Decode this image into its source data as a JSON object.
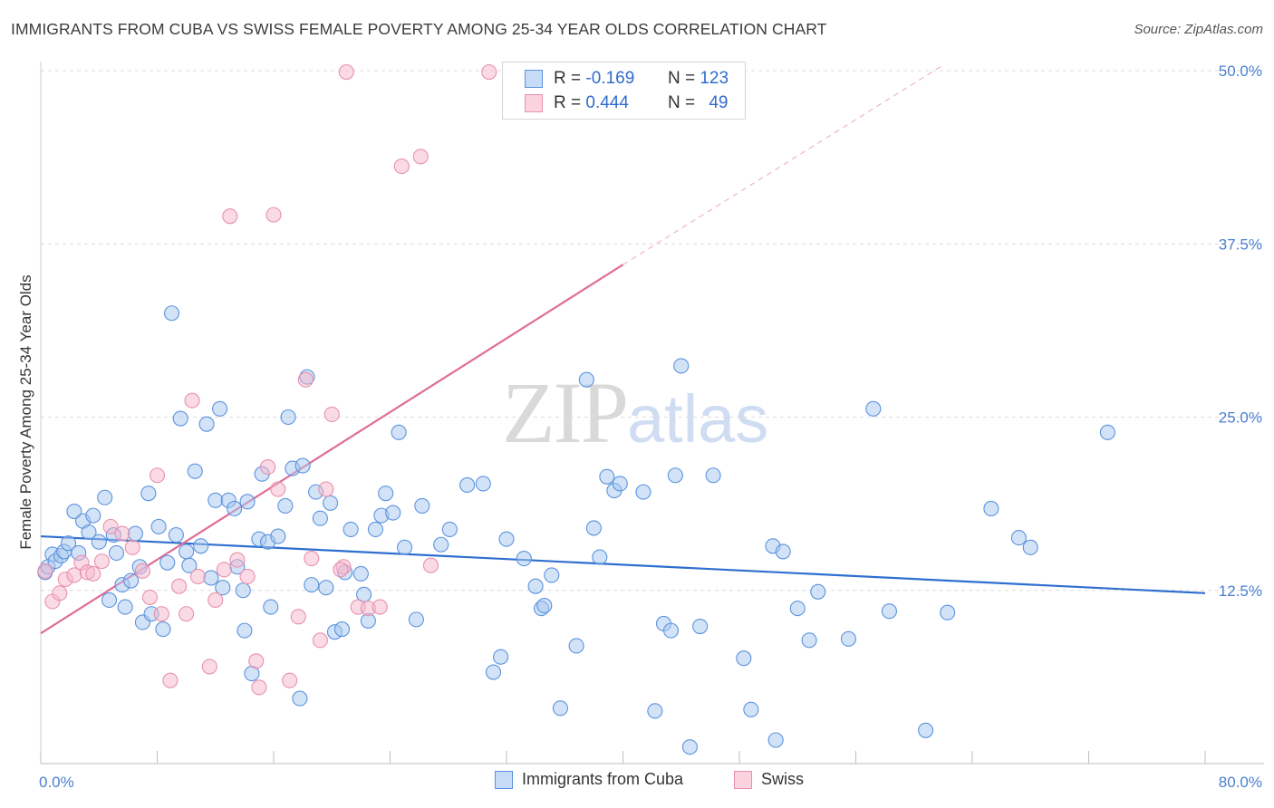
{
  "title": "IMMIGRANTS FROM CUBA VS SWISS FEMALE POVERTY AMONG 25-34 YEAR OLDS CORRELATION CHART",
  "source": "Source: ZipAtlas.com",
  "watermark": {
    "zip": "ZIP",
    "atlas": "atlas"
  },
  "legend": {
    "rows": [
      {
        "r_label": "R =",
        "r_value": "-0.169",
        "n_label": "N =",
        "n_value": "123",
        "color": "#a8c8f0"
      },
      {
        "r_label": "R =",
        "r_value": "0.444",
        "n_label": "N =",
        "n_value": "49",
        "color": "#f6b8cb"
      }
    ]
  },
  "bottom_legend": [
    {
      "label": "Immigrants from Cuba",
      "color": "#a8c8f0"
    },
    {
      "label": "Swiss",
      "color": "#f6b8cb"
    }
  ],
  "chart_data": {
    "type": "scatter",
    "title": "IMMIGRANTS FROM CUBA VS SWISS FEMALE POVERTY AMONG 25-34 YEAR OLDS CORRELATION CHART",
    "xlabel": "",
    "ylabel": "Female Poverty Among 25-34 Year Olds",
    "xlim": [
      0,
      80
    ],
    "ylim": [
      0,
      50
    ],
    "x_tick_labels": [
      "0.0%",
      "80.0%"
    ],
    "y_ticks": [
      12.5,
      25,
      37.5,
      50
    ],
    "y_tick_labels": [
      "12.5%",
      "25.0%",
      "37.5%",
      "50.0%"
    ],
    "grid": true,
    "legend_position": "top-center",
    "series": [
      {
        "name": "Immigrants from Cuba",
        "color": "#5b93de",
        "fill": "#a8c8f0",
        "trend": {
          "x": [
            0,
            80
          ],
          "y": [
            16.4,
            12.3
          ],
          "style": "solid",
          "color": "#2f6fd0"
        },
        "points": [
          [
            0.3,
            13.8
          ],
          [
            0.5,
            14.2
          ],
          [
            0.8,
            15.1
          ],
          [
            1.0,
            14.6
          ],
          [
            1.4,
            15.0
          ],
          [
            1.6,
            15.3
          ],
          [
            1.9,
            15.9
          ],
          [
            2.3,
            18.2
          ],
          [
            2.6,
            15.2
          ],
          [
            2.9,
            17.5
          ],
          [
            3.3,
            16.7
          ],
          [
            3.6,
            17.9
          ],
          [
            4.0,
            16.0
          ],
          [
            4.4,
            19.2
          ],
          [
            4.7,
            11.8
          ],
          [
            5.0,
            16.5
          ],
          [
            5.2,
            15.2
          ],
          [
            5.6,
            12.9
          ],
          [
            5.8,
            11.3
          ],
          [
            6.2,
            13.2
          ],
          [
            6.5,
            16.6
          ],
          [
            6.8,
            14.2
          ],
          [
            7.0,
            10.2
          ],
          [
            7.4,
            19.5
          ],
          [
            7.6,
            10.8
          ],
          [
            8.1,
            17.1
          ],
          [
            8.4,
            9.7
          ],
          [
            8.7,
            14.5
          ],
          [
            9.0,
            32.5
          ],
          [
            9.3,
            16.5
          ],
          [
            9.6,
            24.9
          ],
          [
            10.0,
            15.3
          ],
          [
            10.2,
            14.3
          ],
          [
            10.6,
            21.1
          ],
          [
            11.0,
            15.7
          ],
          [
            11.4,
            24.5
          ],
          [
            11.7,
            13.4
          ],
          [
            12.0,
            19.0
          ],
          [
            12.3,
            25.6
          ],
          [
            12.5,
            12.7
          ],
          [
            12.9,
            19.0
          ],
          [
            13.3,
            18.4
          ],
          [
            13.5,
            14.2
          ],
          [
            13.9,
            12.5
          ],
          [
            14.0,
            9.6
          ],
          [
            14.2,
            18.9
          ],
          [
            14.5,
            6.5
          ],
          [
            15.0,
            16.2
          ],
          [
            15.2,
            20.9
          ],
          [
            15.6,
            16.0
          ],
          [
            15.8,
            11.3
          ],
          [
            16.3,
            16.4
          ],
          [
            16.8,
            18.6
          ],
          [
            17.0,
            25.0
          ],
          [
            17.3,
            21.3
          ],
          [
            17.8,
            4.7
          ],
          [
            18.0,
            21.5
          ],
          [
            18.3,
            27.9
          ],
          [
            18.6,
            12.9
          ],
          [
            18.9,
            19.6
          ],
          [
            19.2,
            17.7
          ],
          [
            19.6,
            12.7
          ],
          [
            19.9,
            18.8
          ],
          [
            20.2,
            9.5
          ],
          [
            20.7,
            9.7
          ],
          [
            20.9,
            13.8
          ],
          [
            21.3,
            16.9
          ],
          [
            22.0,
            13.7
          ],
          [
            22.2,
            12.2
          ],
          [
            22.5,
            10.3
          ],
          [
            23.0,
            16.9
          ],
          [
            23.4,
            17.9
          ],
          [
            23.7,
            19.5
          ],
          [
            24.2,
            18.1
          ],
          [
            24.6,
            23.9
          ],
          [
            25.0,
            15.6
          ],
          [
            25.8,
            10.4
          ],
          [
            26.2,
            18.6
          ],
          [
            27.5,
            15.8
          ],
          [
            28.1,
            16.9
          ],
          [
            29.3,
            20.1
          ],
          [
            30.4,
            20.2
          ],
          [
            31.1,
            6.6
          ],
          [
            31.6,
            7.7
          ],
          [
            32.0,
            16.2
          ],
          [
            33.2,
            14.8
          ],
          [
            34.0,
            12.8
          ],
          [
            34.4,
            11.2
          ],
          [
            34.6,
            11.4
          ],
          [
            35.1,
            13.6
          ],
          [
            35.7,
            4.0
          ],
          [
            36.8,
            8.5
          ],
          [
            37.5,
            27.7
          ],
          [
            38.0,
            17.0
          ],
          [
            38.4,
            14.9
          ],
          [
            38.9,
            20.7
          ],
          [
            39.4,
            19.7
          ],
          [
            39.8,
            20.2
          ],
          [
            41.4,
            19.6
          ],
          [
            42.2,
            3.8
          ],
          [
            42.8,
            10.1
          ],
          [
            43.3,
            9.6
          ],
          [
            43.6,
            20.8
          ],
          [
            44.0,
            28.7
          ],
          [
            44.6,
            1.2
          ],
          [
            45.3,
            9.9
          ],
          [
            46.2,
            20.8
          ],
          [
            48.3,
            7.6
          ],
          [
            48.8,
            3.9
          ],
          [
            50.3,
            15.7
          ],
          [
            50.5,
            1.7
          ],
          [
            51.0,
            15.3
          ],
          [
            52.0,
            11.2
          ],
          [
            52.8,
            8.9
          ],
          [
            53.4,
            12.4
          ],
          [
            55.5,
            9.0
          ],
          [
            57.2,
            25.6
          ],
          [
            58.3,
            11.0
          ],
          [
            60.8,
            2.4
          ],
          [
            62.3,
            10.9
          ],
          [
            65.3,
            18.4
          ],
          [
            67.2,
            16.3
          ],
          [
            68.0,
            15.6
          ],
          [
            73.3,
            23.9
          ]
        ]
      },
      {
        "name": "Swiss",
        "color": "#e891ad",
        "fill": "#f6b8cb",
        "trend": {
          "x": [
            0,
            40
          ],
          "y": [
            9.4,
            36
          ],
          "style": "solid",
          "dashed_extension_to": [
            62,
            50.4
          ],
          "color": "#e06d97"
        },
        "points": [
          [
            0.3,
            13.9
          ],
          [
            0.8,
            11.7
          ],
          [
            1.3,
            12.3
          ],
          [
            1.7,
            13.3
          ],
          [
            2.3,
            13.6
          ],
          [
            2.8,
            14.5
          ],
          [
            3.2,
            13.8
          ],
          [
            3.6,
            13.7
          ],
          [
            4.2,
            14.6
          ],
          [
            4.8,
            17.1
          ],
          [
            5.6,
            16.6
          ],
          [
            6.3,
            15.6
          ],
          [
            7.0,
            13.9
          ],
          [
            7.5,
            12.0
          ],
          [
            8.0,
            20.8
          ],
          [
            8.3,
            10.8
          ],
          [
            8.9,
            6.0
          ],
          [
            9.5,
            12.8
          ],
          [
            10.0,
            10.8
          ],
          [
            10.4,
            26.2
          ],
          [
            10.8,
            13.5
          ],
          [
            11.6,
            7.0
          ],
          [
            12.0,
            11.8
          ],
          [
            12.6,
            14.0
          ],
          [
            13.0,
            39.5
          ],
          [
            13.5,
            14.7
          ],
          [
            14.2,
            13.5
          ],
          [
            14.8,
            7.4
          ],
          [
            15.0,
            5.5
          ],
          [
            15.6,
            21.4
          ],
          [
            16.0,
            39.6
          ],
          [
            16.3,
            19.8
          ],
          [
            17.1,
            6.0
          ],
          [
            17.7,
            10.6
          ],
          [
            18.2,
            27.7
          ],
          [
            18.6,
            14.8
          ],
          [
            19.2,
            8.9
          ],
          [
            19.6,
            19.8
          ],
          [
            20.0,
            25.2
          ],
          [
            20.8,
            14.2
          ],
          [
            21.0,
            49.9
          ],
          [
            21.8,
            11.3
          ],
          [
            22.5,
            11.2
          ],
          [
            23.3,
            11.3
          ],
          [
            24.8,
            43.1
          ],
          [
            26.1,
            43.8
          ],
          [
            26.8,
            14.3
          ],
          [
            30.8,
            49.9
          ],
          [
            20.6,
            14.0
          ]
        ]
      }
    ]
  }
}
